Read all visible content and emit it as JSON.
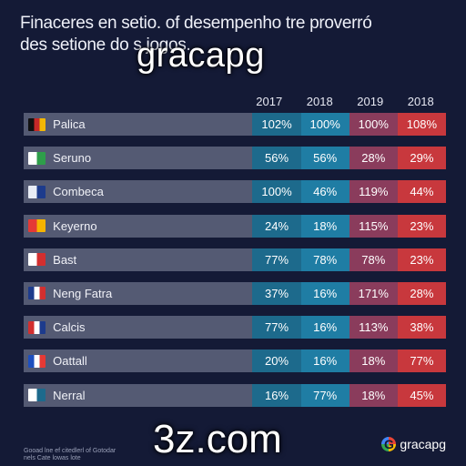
{
  "chart_data": {
    "type": "table",
    "title_lines": [
      "Finaceres en setio. of desempenho tre proverró",
      "des setione do           s jogos."
    ],
    "columns": [
      "2017",
      "2018",
      "2019",
      "2018"
    ],
    "rows": [
      {
        "name": "Palica",
        "flag_colors": [
          "#111111",
          "#c62828",
          "#f2b705"
        ],
        "values": [
          "102%",
          "100%",
          "100%",
          "108%"
        ]
      },
      {
        "name": "Seruno",
        "flag_colors": [
          "#ffffff",
          "#2e9e4a"
        ],
        "values": [
          "56%",
          "56%",
          "28%",
          "29%"
        ]
      },
      {
        "name": "Combeca",
        "flag_colors": [
          "#e8ecf5",
          "#1d3b8c"
        ],
        "values": [
          "100%",
          "46%",
          "119%",
          "44%"
        ]
      },
      {
        "name": "Keyerno",
        "flag_colors": [
          "#e53935",
          "#f6b400"
        ],
        "values": [
          "24%",
          "18%",
          "115%",
          "23%"
        ]
      },
      {
        "name": "Bast",
        "flag_colors": [
          "#ffffff",
          "#d32f2f"
        ],
        "values": [
          "77%",
          "78%",
          "78%",
          "23%"
        ]
      },
      {
        "name": "Neng Fatra",
        "flag_colors": [
          "#1d3b8c",
          "#ffffff",
          "#d32f2f"
        ],
        "values": [
          "37%",
          "16%",
          "171%",
          "28%"
        ]
      },
      {
        "name": "Calcis",
        "flag_colors": [
          "#d32f2f",
          "#ffffff",
          "#1d3b8c"
        ],
        "values": [
          "77%",
          "16%",
          "113%",
          "38%"
        ]
      },
      {
        "name": "Oattall",
        "flag_colors": [
          "#1d4fbf",
          "#ffffff",
          "#e53935"
        ],
        "values": [
          "20%",
          "16%",
          "18%",
          "77%"
        ]
      },
      {
        "name": "Nerral",
        "flag_colors": [
          "#ffffff",
          "#1d6a8c"
        ],
        "values": [
          "16%",
          "77%",
          "18%",
          "45%"
        ]
      }
    ],
    "cell_colors": [
      "#1d6a8c",
      "#1f7da4",
      "#8a3c5c",
      "#c8383d"
    ]
  },
  "watermarks": {
    "top": "gracapg",
    "bottom": "3z.com"
  },
  "footnote": [
    "Gooad lne ef citedlerl of Gotodar",
    "nels  Cate lowas  lote"
  ],
  "brand": {
    "icon": "google-g-icon",
    "letter": "G",
    "label": "gracapg"
  }
}
